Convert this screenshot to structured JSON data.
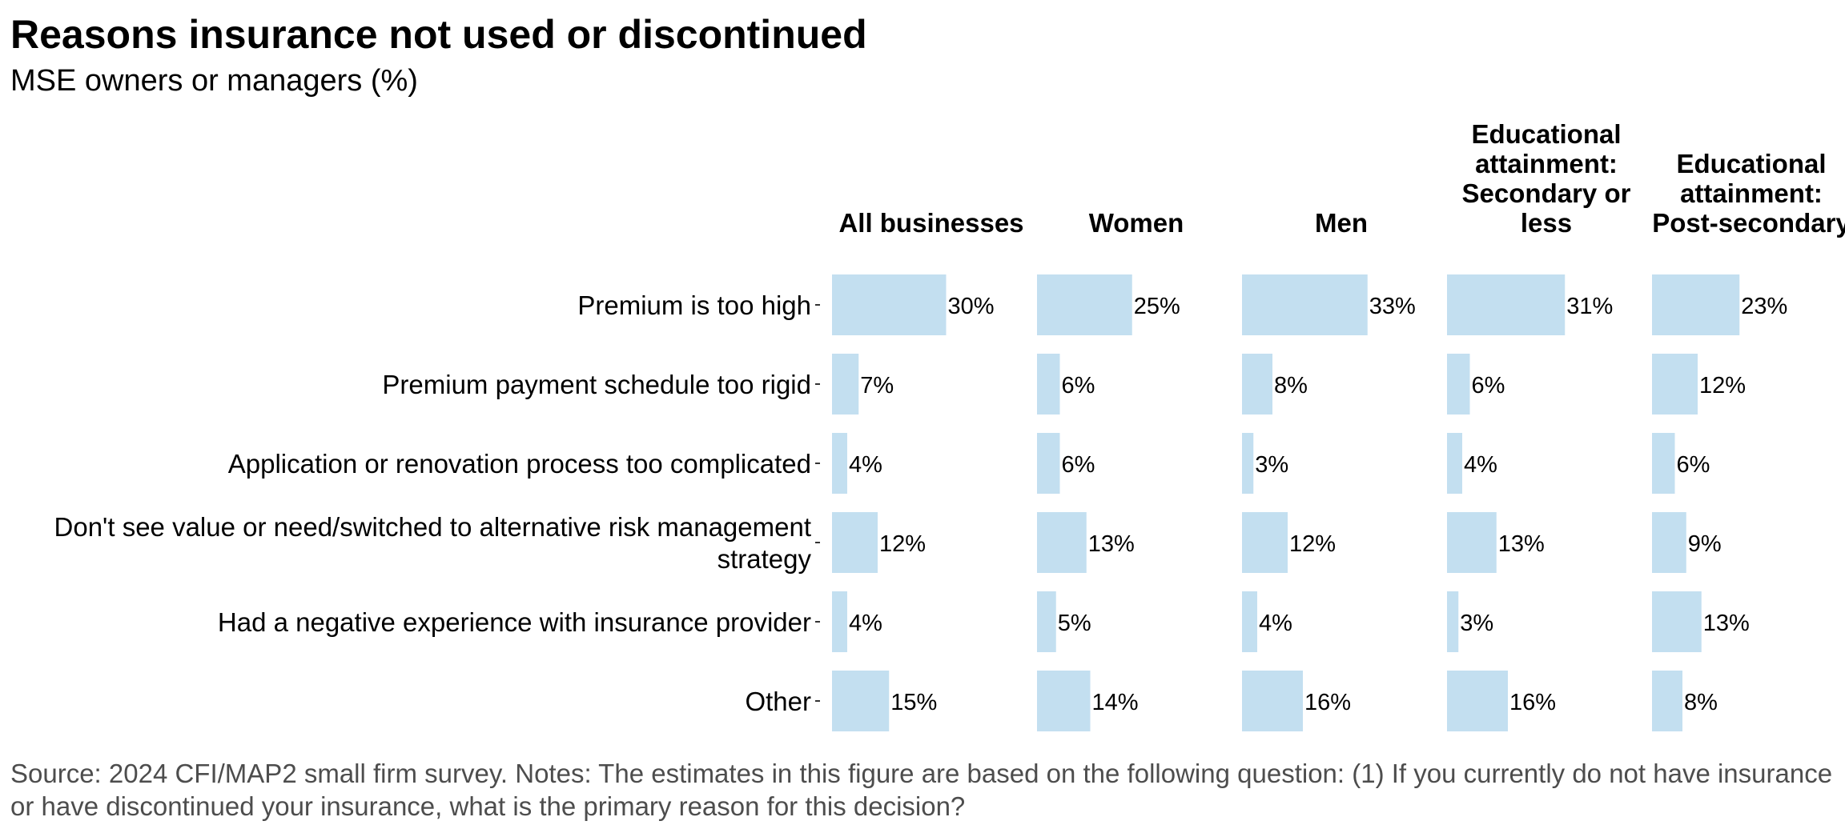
{
  "title": "Reasons insurance not used or discontinued",
  "subtitle": "MSE owners or managers (%)",
  "note": "Source: 2024 CFI/MAP2 small firm survey. Notes: The estimates in this figure are based on the following question: (1) If you currently do not have insurance or have discontinued your insurance, what is the primary reason for this decision?",
  "colors": {
    "bar": "#c3dff0",
    "text": "#000000",
    "note": "#4d4d4d"
  },
  "chart_data": {
    "type": "bar",
    "orientation": "horizontal",
    "layout": "small-multiples",
    "title": "Reasons insurance not used or discontinued",
    "subtitle": "MSE owners or managers (%)",
    "value_format": "percent",
    "xlim": [
      0,
      35
    ],
    "grid": false,
    "categories": [
      "Premium is too high",
      "Premium payment schedule too rigid",
      "Application or renovation process too complicated",
      "Don't see value or need/switched to alternative risk management strategy",
      "Had a negative experience with insurance provider",
      "Other"
    ],
    "series": [
      {
        "name": "All businesses",
        "values": [
          30,
          7,
          4,
          12,
          4,
          15
        ]
      },
      {
        "name": "Women",
        "values": [
          25,
          6,
          6,
          13,
          5,
          14
        ]
      },
      {
        "name": "Men",
        "values": [
          33,
          8,
          3,
          12,
          4,
          16
        ]
      },
      {
        "name": "Educational attainment: Secondary or less",
        "values": [
          31,
          6,
          4,
          13,
          3,
          16
        ]
      },
      {
        "name": "Educational attainment: Post-secondary",
        "values": [
          23,
          12,
          6,
          9,
          13,
          8
        ]
      }
    ]
  }
}
